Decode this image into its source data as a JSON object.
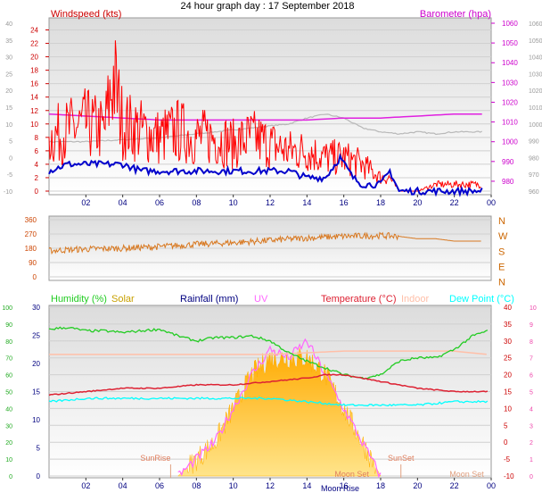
{
  "page_title": "24 hour graph day : 17 September 2018",
  "colors": {
    "windspeed": "#ff0000",
    "wind_avg": "#0000cc",
    "barometer": "#e020e0",
    "barometer_ref": "#b8b8b8",
    "direction": "#d87820",
    "humidity": "#22cc22",
    "solar": "#ffc000",
    "rainfall": "#000080",
    "uv": "#ff66ff",
    "temperature": "#dd2233",
    "indoor": "#ffbfa8",
    "dewpoint": "#00ffff"
  },
  "chart_data": [
    {
      "type": "line",
      "title": "",
      "x_ticks": [
        "02",
        "04",
        "06",
        "08",
        "10",
        "12",
        "14",
        "16",
        "18",
        "20",
        "22",
        "00"
      ],
      "left_axis": {
        "label": "Windspeed (kts)",
        "ticks": [
          0,
          2,
          4,
          6,
          8,
          10,
          12,
          14,
          16,
          18,
          20,
          22,
          24
        ],
        "ylim": [
          0,
          25
        ]
      },
      "outer_left_axis": {
        "ticks": [
          -10,
          -5,
          0,
          5,
          10,
          15,
          20,
          25,
          30,
          35,
          40
        ]
      },
      "right_axis": {
        "label": "Barometer (hpa)",
        "ticks": [
          980,
          990,
          1000,
          1010,
          1020,
          1030,
          1040,
          1050,
          1060
        ],
        "ylim": [
          975,
          1060
        ]
      },
      "outer_right_axis": {
        "ticks": [
          960,
          970,
          980,
          990,
          1000,
          1010,
          1020,
          1030,
          1040,
          1050,
          1060
        ]
      },
      "series": [
        {
          "name": "Windspeed",
          "x": [
            0,
            1,
            2,
            3,
            3.5,
            4,
            5,
            6,
            7,
            8,
            9,
            10,
            11,
            12,
            13,
            14,
            15,
            16,
            17,
            18,
            18.5,
            19,
            20,
            21,
            22,
            23,
            23.5
          ],
          "values": [
            8,
            9,
            10,
            9,
            17,
            10,
            9,
            8,
            9,
            8,
            8,
            7,
            8,
            7,
            6,
            6,
            5,
            5,
            4,
            2,
            2,
            0,
            0,
            1,
            1,
            1,
            1
          ]
        },
        {
          "name": "Wind average",
          "x": [
            0,
            1,
            2,
            3,
            4,
            5,
            6,
            7,
            8,
            9,
            10,
            11,
            12,
            13,
            14,
            15,
            15.8,
            16.5,
            17,
            18,
            18.5,
            19,
            20,
            21,
            22,
            23,
            23.5
          ],
          "values": [
            3,
            4,
            4,
            4,
            4,
            3,
            3,
            3,
            3,
            3,
            3,
            3,
            3,
            3,
            2,
            2,
            5,
            2,
            1,
            1,
            3,
            0,
            0,
            0,
            0,
            0,
            0
          ]
        },
        {
          "name": "Barometer",
          "x": [
            0,
            2,
            4,
            6,
            8,
            10,
            12,
            14,
            16,
            18,
            20,
            22,
            23.5
          ],
          "values": [
            1014,
            1013,
            1012,
            1011,
            1011,
            1011,
            1011,
            1011,
            1012,
            1012,
            1013,
            1014,
            1014
          ]
        },
        {
          "name": "Barometer (previous)",
          "x": [
            0,
            2,
            4,
            6,
            8,
            10,
            12,
            13,
            14,
            15,
            16,
            17,
            18,
            19,
            20,
            21,
            22,
            23.5
          ],
          "values": [
            1000,
            1000,
            1001,
            1002,
            1004,
            1006,
            1008,
            1009,
            1012,
            1014,
            1012,
            1007,
            1005,
            1004,
            1005,
            1004,
            1005,
            1005
          ]
        }
      ]
    },
    {
      "type": "line",
      "x_ticks": [
        "02",
        "04",
        "06",
        "08",
        "10",
        "12",
        "14",
        "16",
        "18",
        "20",
        "22",
        "00"
      ],
      "left_axis": {
        "ticks": [
          0,
          90,
          180,
          270,
          360
        ],
        "ylim": [
          0,
          360
        ]
      },
      "right_axis": {
        "ticks": [
          "N",
          "W",
          "S",
          "E",
          "N"
        ]
      },
      "series": [
        {
          "name": "Wind direction",
          "x": [
            0,
            2,
            4,
            6,
            8,
            10,
            12,
            14,
            16,
            18,
            19,
            20,
            21,
            22,
            23.5
          ],
          "values": [
            165,
            175,
            180,
            190,
            205,
            215,
            230,
            245,
            255,
            260,
            255,
            240,
            240,
            225,
            225
          ]
        }
      ]
    },
    {
      "type": "area",
      "x_ticks": [
        "02",
        "04",
        "06",
        "08",
        "10",
        "12",
        "14",
        "16",
        "18",
        "20",
        "22",
        "00"
      ],
      "legend": [
        "Humidity (%)",
        "Solar",
        "Rainfall (mm)",
        "UV",
        "Temperature (°C)",
        "Indoor",
        "Dew Point (°C)"
      ],
      "annotations": [
        "SunRise",
        "SunSet",
        "Moon Rise",
        "Moon Set"
      ],
      "outer_left_axis": {
        "ticks": [
          0,
          10,
          20,
          30,
          40,
          50,
          60,
          70,
          80,
          90,
          100
        ]
      },
      "left_axis": {
        "ticks": [
          0,
          5,
          10,
          15,
          20,
          25,
          30
        ],
        "ylim": [
          0,
          30
        ]
      },
      "right_axis": {
        "ticks": [
          -10,
          -5,
          0,
          5,
          10,
          15,
          20,
          25,
          30,
          35,
          40
        ],
        "ylim": [
          -10,
          40
        ]
      },
      "outer_right_axis": {
        "ticks": [
          0,
          1,
          2,
          3,
          4,
          5,
          6,
          7,
          8,
          9,
          10
        ]
      },
      "series": [
        {
          "name": "Humidity",
          "x": [
            0,
            1,
            2,
            3,
            4,
            5,
            6,
            7,
            8,
            9,
            10,
            11,
            12,
            13,
            14,
            15,
            16,
            17,
            18,
            19,
            20,
            21,
            22,
            23,
            23.8
          ],
          "values": [
            87,
            88,
            86,
            86,
            85,
            86,
            87,
            83,
            80,
            82,
            82,
            83,
            80,
            73,
            68,
            64,
            60,
            58,
            60,
            68,
            70,
            70,
            75,
            83,
            86
          ]
        },
        {
          "name": "Solar",
          "x": [
            7,
            8,
            9,
            10,
            11,
            12,
            13,
            14,
            15,
            16,
            17,
            18
          ],
          "values": [
            0,
            1,
            2,
            4,
            6,
            7,
            7,
            7,
            6,
            4,
            2,
            0
          ]
        },
        {
          "name": "UV",
          "x": [
            7,
            8,
            9,
            10,
            11,
            12,
            13,
            14,
            15,
            16,
            17,
            18
          ],
          "values": [
            0,
            1,
            2,
            4,
            6,
            7.5,
            7,
            8,
            6,
            4,
            2,
            0
          ]
        },
        {
          "name": "Temperature",
          "x": [
            0,
            2,
            4,
            6,
            8,
            10,
            12,
            14,
            15,
            16,
            17,
            18,
            20,
            22,
            23.8
          ],
          "values": [
            14,
            15,
            16,
            16,
            17,
            17,
            18,
            19,
            20,
            20,
            19,
            18,
            16,
            15,
            15
          ]
        },
        {
          "name": "Indoor",
          "x": [
            0,
            4,
            8,
            12,
            16,
            18,
            20,
            22,
            23.8
          ],
          "values": [
            26,
            26,
            26,
            26,
            27,
            27,
            27,
            27,
            26
          ]
        },
        {
          "name": "Dew Point",
          "x": [
            0,
            2,
            4,
            6,
            8,
            10,
            12,
            14,
            16,
            18,
            20,
            22,
            23.8
          ],
          "values": [
            12,
            13,
            13,
            13,
            13,
            13,
            13,
            12,
            11,
            11,
            11,
            12,
            12
          ]
        }
      ]
    }
  ]
}
